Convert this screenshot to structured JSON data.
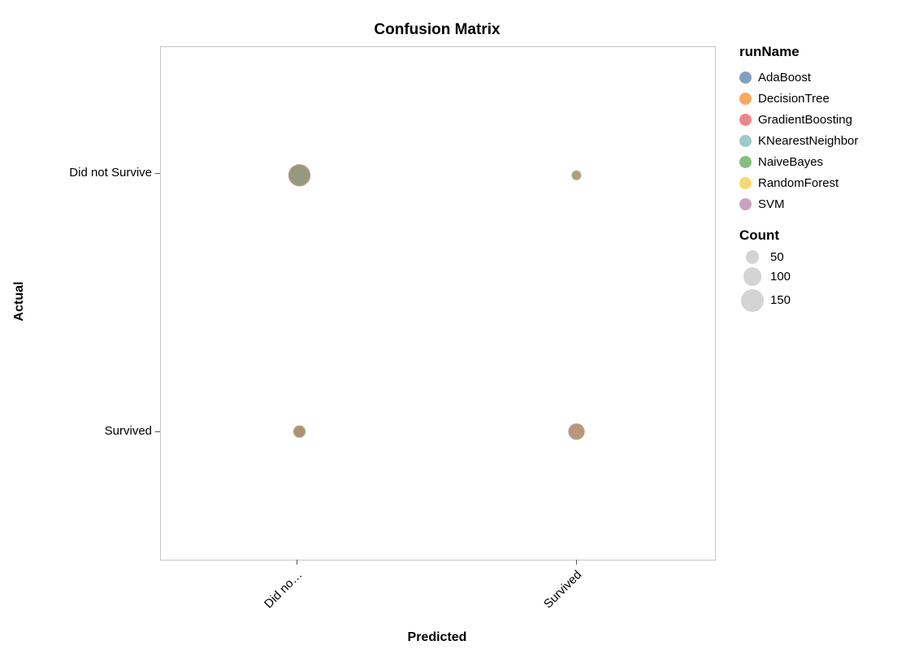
{
  "chart_data": {
    "type": "scatter",
    "title": "Confusion Matrix",
    "xlabel": "Predicted",
    "ylabel": "Actual",
    "x_categories": [
      "Did not Survive",
      "Survived"
    ],
    "y_categories": [
      "Did not Survive",
      "Survived"
    ],
    "x_tick_labels": [
      "Did no…",
      "Survived"
    ],
    "y_tick_labels": [
      "Did not Survive",
      "Survived"
    ],
    "values_estimated_from_bubble_sizes": true,
    "legend_runName": {
      "title": "runName"
    },
    "count_legend": {
      "title": "Count",
      "sizes": [
        50,
        100,
        150
      ]
    },
    "series": [
      {
        "name": "AdaBoost",
        "color": "#4c78a8",
        "counts": [
          [
            140,
            17
          ],
          [
            36,
            75
          ]
        ]
      },
      {
        "name": "DecisionTree",
        "color": "#f58518",
        "counts": [
          [
            148,
            9
          ],
          [
            46,
            65
          ]
        ]
      },
      {
        "name": "GradientBoosting",
        "color": "#e45756",
        "counts": [
          [
            138,
            19
          ],
          [
            33,
            78
          ]
        ]
      },
      {
        "name": "KNearestNeighbor",
        "color": "#72b7b2",
        "counts": [
          [
            130,
            27
          ],
          [
            45,
            66
          ]
        ]
      },
      {
        "name": "NaiveBayes",
        "color": "#54a24b",
        "counts": [
          [
            118,
            29
          ],
          [
            38,
            83
          ]
        ]
      },
      {
        "name": "RandomForest",
        "color": "#eeca3b",
        "counts": [
          [
            145,
            12
          ],
          [
            38,
            73
          ]
        ]
      },
      {
        "name": "SVM",
        "color": "#b279a2",
        "counts": [
          [
            126,
            31
          ],
          [
            48,
            63
          ]
        ]
      }
    ],
    "layout": {
      "legend_position": "right",
      "grid": false,
      "mark_opacity": 0.3,
      "size_scale_anchor": {
        "count": 150,
        "radius_px": 14
      }
    }
  }
}
